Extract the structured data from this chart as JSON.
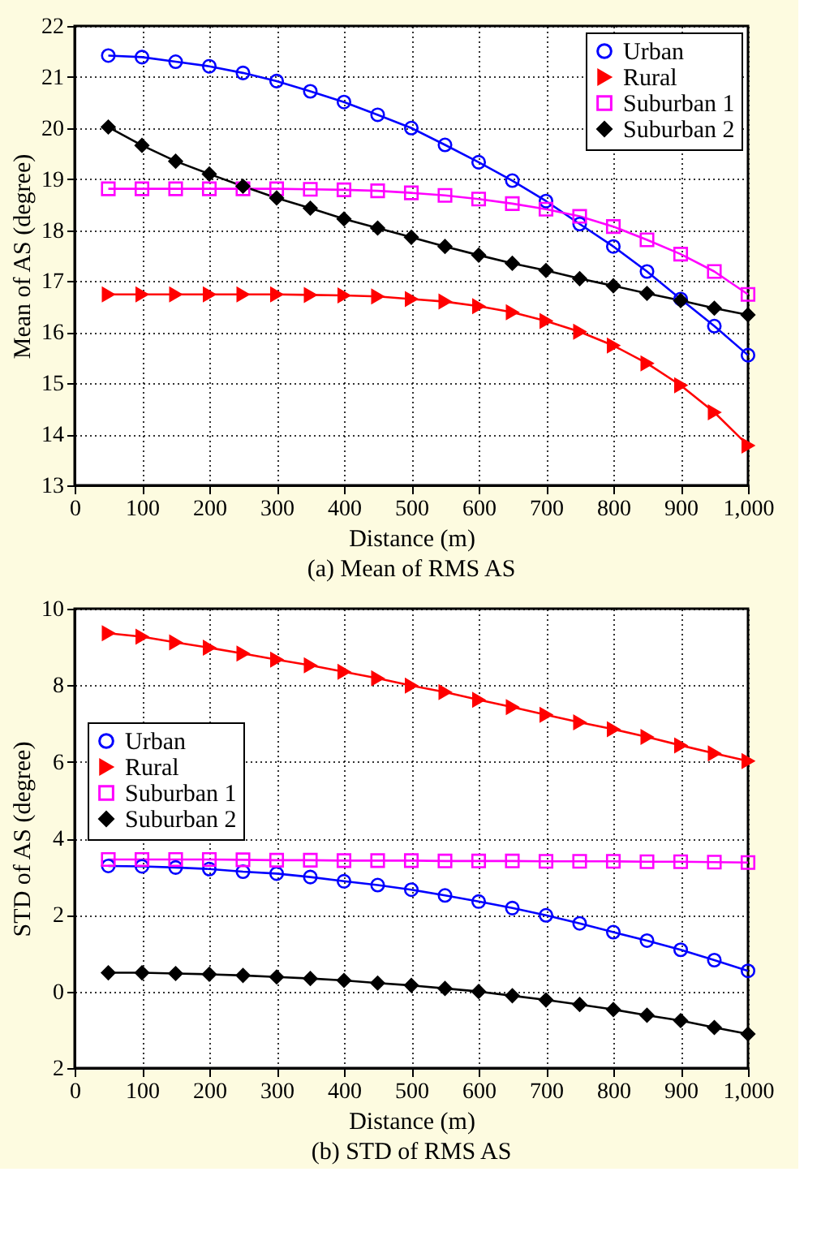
{
  "chart_data": [
    {
      "type": "line",
      "title": "(a) Mean of RMS AS",
      "xlabel": "Distance (m)",
      "ylabel": "Mean of AS (degree)",
      "x": [
        50,
        100,
        150,
        200,
        250,
        300,
        350,
        400,
        450,
        500,
        550,
        600,
        650,
        700,
        750,
        800,
        850,
        900,
        950,
        1000
      ],
      "series": [
        {
          "name": "Urban",
          "color": "#0000ff",
          "marker": "circle",
          "values": [
            21.42,
            21.39,
            21.3,
            21.21,
            21.08,
            20.92,
            20.72,
            20.51,
            20.26,
            20.0,
            19.67,
            19.33,
            18.97,
            18.57,
            18.12,
            17.68,
            17.19,
            16.65,
            16.12,
            15.55
          ]
        },
        {
          "name": "Rural",
          "color": "#ff0000",
          "marker": "triangle",
          "values": [
            16.74,
            16.74,
            16.74,
            16.74,
            16.74,
            16.74,
            16.73,
            16.72,
            16.7,
            16.65,
            16.6,
            16.51,
            16.39,
            16.22,
            16.01,
            15.74,
            15.39,
            14.96,
            14.43,
            13.78
          ]
        },
        {
          "name": "Suburban 1",
          "color": "#ff00ff",
          "marker": "square",
          "values": [
            18.81,
            18.81,
            18.81,
            18.81,
            18.81,
            18.81,
            18.8,
            18.79,
            18.77,
            18.73,
            18.68,
            18.61,
            18.52,
            18.41,
            18.27,
            18.07,
            17.81,
            17.53,
            17.19,
            16.74
          ]
        },
        {
          "name": "Suburban 2",
          "color": "#000000",
          "marker": "diamond",
          "values": [
            20.02,
            19.66,
            19.35,
            19.1,
            18.86,
            18.63,
            18.43,
            18.22,
            18.04,
            17.86,
            17.68,
            17.51,
            17.35,
            17.21,
            17.05,
            16.91,
            16.76,
            16.62,
            16.47,
            16.34
          ]
        }
      ],
      "xlim": [
        0,
        1000
      ],
      "xticks": [
        0,
        100,
        200,
        300,
        400,
        500,
        600,
        700,
        800,
        900,
        {
          "value": 1000,
          "label": "1,000"
        }
      ],
      "ylim": [
        13,
        22
      ],
      "yticks": [
        13,
        14,
        15,
        16,
        17,
        18,
        19,
        20,
        21,
        22
      ],
      "grid": true,
      "legend": "top right",
      "line_style": "solid"
    },
    {
      "type": "line",
      "title": "(b) STD of RMS AS",
      "xlabel": "Distance (m)",
      "ylabel": "STD of AS (degree)",
      "x": [
        50,
        100,
        150,
        200,
        250,
        300,
        350,
        400,
        450,
        500,
        550,
        600,
        650,
        700,
        750,
        800,
        850,
        900,
        950,
        1000
      ],
      "series": [
        {
          "name": "Urban",
          "color": "#0000ff",
          "marker": "circle",
          "values": [
            3.28,
            3.27,
            3.24,
            3.2,
            3.13,
            3.08,
            2.99,
            2.88,
            2.78,
            2.66,
            2.51,
            2.35,
            2.18,
            1.99,
            1.78,
            1.55,
            1.33,
            1.09,
            0.82,
            0.54
          ]
        },
        {
          "name": "Rural",
          "color": "#ff0000",
          "marker": "triangle",
          "values": [
            9.36,
            9.27,
            9.12,
            8.98,
            8.83,
            8.67,
            8.52,
            8.35,
            8.18,
            7.99,
            7.82,
            7.62,
            7.43,
            7.23,
            7.03,
            6.85,
            6.65,
            6.43,
            6.22,
            6.02
          ]
        },
        {
          "name": "Suburban 1",
          "color": "#ff00ff",
          "marker": "square",
          "values": [
            3.45,
            3.45,
            3.45,
            3.45,
            3.44,
            3.43,
            3.43,
            3.42,
            3.42,
            3.42,
            3.41,
            3.41,
            3.41,
            3.4,
            3.4,
            3.4,
            3.39,
            3.39,
            3.38,
            3.37
          ]
        },
        {
          "name": "Suburban 2",
          "color": "#000000",
          "marker": "diamond",
          "values": [
            0.49,
            0.49,
            0.47,
            0.45,
            0.42,
            0.38,
            0.34,
            0.29,
            0.22,
            0.16,
            0.08,
            0.0,
            -0.11,
            -0.22,
            -0.34,
            -0.47,
            -0.62,
            -0.76,
            -0.94,
            -1.11
          ]
        }
      ],
      "xlim": [
        0,
        1000
      ],
      "xticks": [
        0,
        100,
        200,
        300,
        400,
        500,
        600,
        700,
        800,
        900,
        {
          "value": 1000,
          "label": "1,000"
        }
      ],
      "ylim": [
        -2,
        10
      ],
      "yticks": [
        {
          "value": -2,
          "label": "2"
        },
        0,
        2,
        4,
        6,
        8,
        10
      ],
      "grid": true,
      "legend": "left",
      "line_style": "solid"
    }
  ]
}
